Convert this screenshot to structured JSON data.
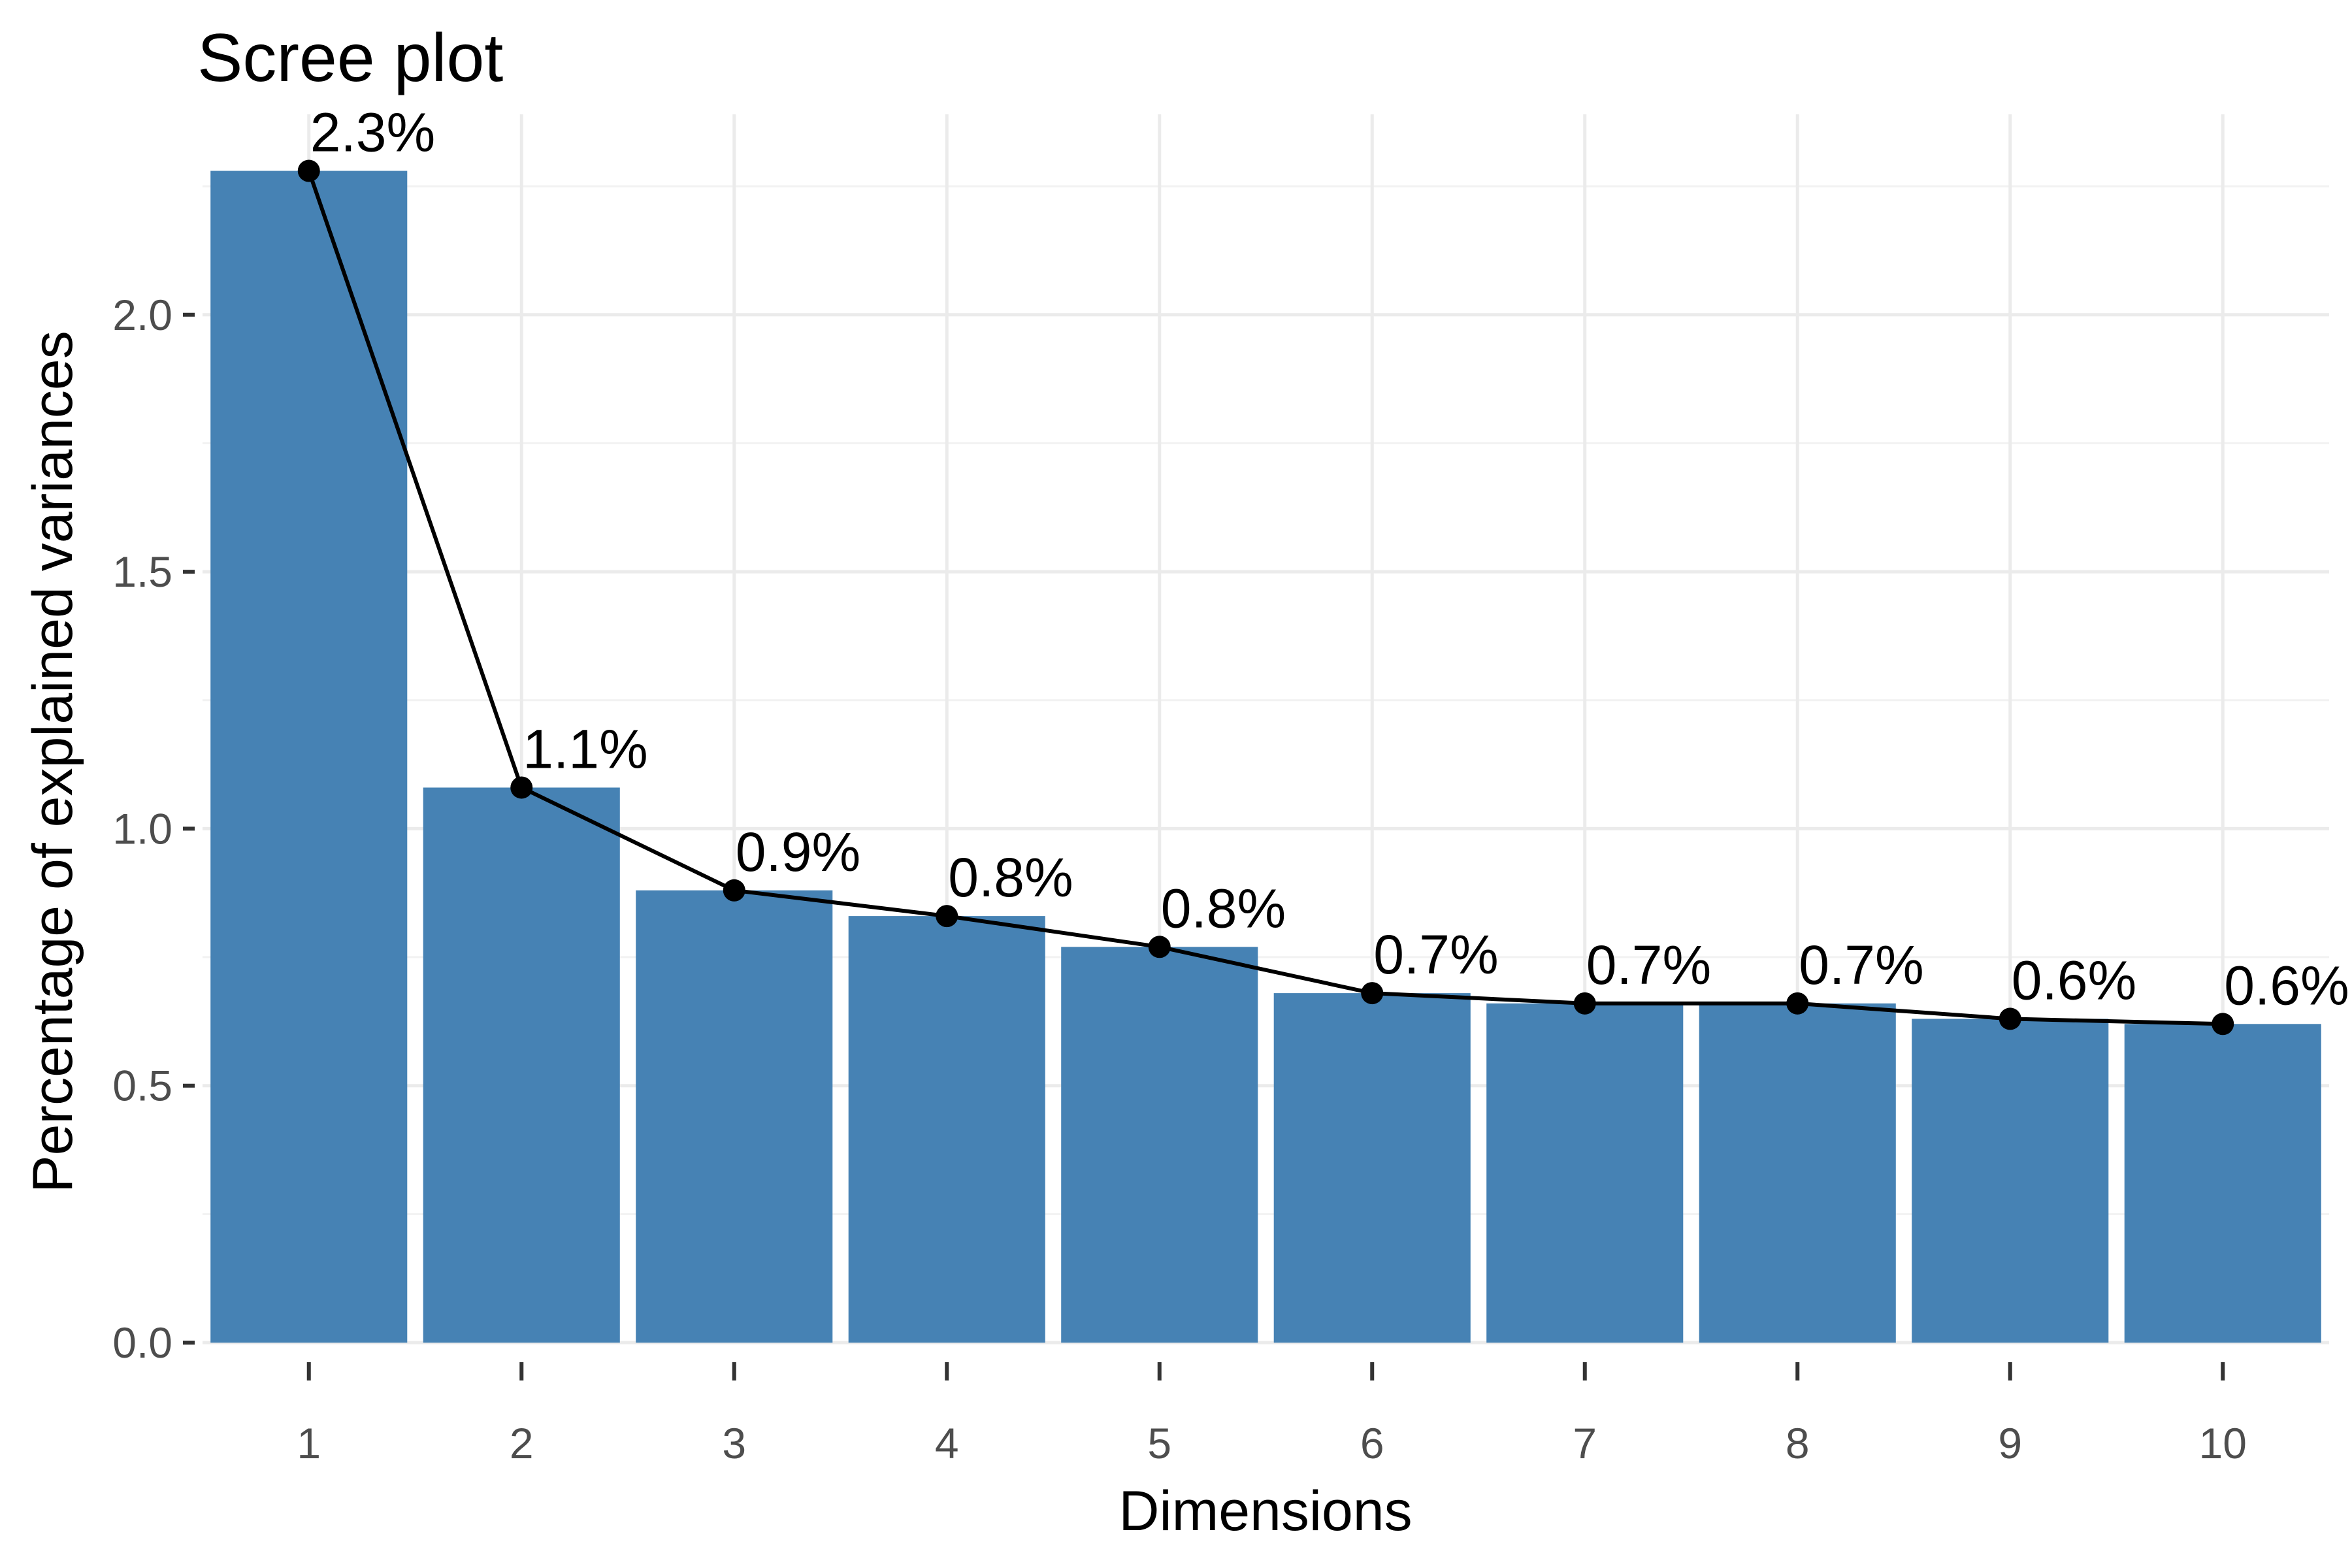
{
  "chart_data": {
    "type": "bar",
    "title": "Scree plot",
    "xlabel": "Dimensions",
    "ylabel": "Percentage of explained variances",
    "categories": [
      "1",
      "2",
      "3",
      "4",
      "5",
      "6",
      "7",
      "8",
      "9",
      "10"
    ],
    "values": [
      2.28,
      1.08,
      0.88,
      0.83,
      0.77,
      0.68,
      0.66,
      0.66,
      0.63,
      0.62
    ],
    "labels": [
      "2.3%",
      "1.1%",
      "0.9%",
      "0.8%",
      "0.8%",
      "0.7%",
      "0.7%",
      "0.7%",
      "0.6%",
      "0.6%"
    ],
    "yticks": [
      0.0,
      0.5,
      1.0,
      1.5,
      2.0
    ],
    "ytick_labels": [
      "0.0",
      "0.5",
      "1.0",
      "1.5",
      "2.0"
    ],
    "ylim": [
      0,
      2.39
    ],
    "grid": true,
    "bar_color": "#4682B4",
    "line_color": "#000000",
    "overlay": "line with points"
  }
}
